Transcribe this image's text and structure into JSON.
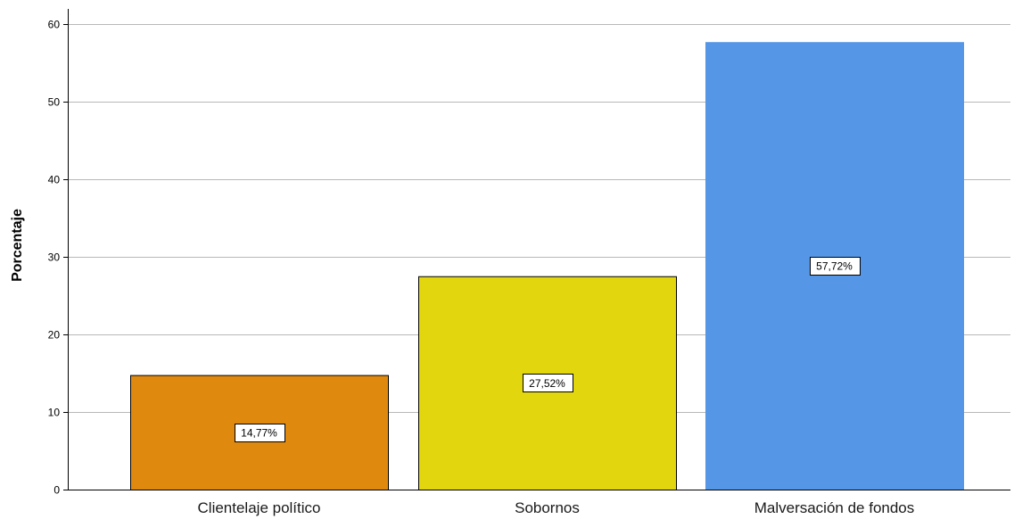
{
  "chart_data": {
    "type": "bar",
    "categories": [
      "Clientelaje político",
      "Sobornos",
      "Malversación de fondos"
    ],
    "values": [
      14.77,
      27.52,
      57.72
    ],
    "data_labels": [
      "14,77%",
      "27,52%",
      "57,72%"
    ],
    "colors": [
      "#e0890f",
      "#e2d60f",
      "#5596e6"
    ],
    "bar_outline": [
      "#000000",
      "#000000",
      "#5596e6"
    ],
    "title": "",
    "xlabel": "",
    "ylabel": "Porcentaje",
    "ylim": [
      0,
      62
    ],
    "yticks": [
      0,
      10,
      20,
      30,
      40,
      50,
      60
    ],
    "grid": true,
    "legend": "none"
  }
}
